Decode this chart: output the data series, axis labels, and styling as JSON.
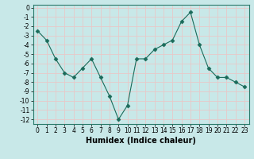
{
  "title": "",
  "xlabel": "Humidex (Indice chaleur)",
  "ylabel": "",
  "x": [
    0,
    1,
    2,
    3,
    4,
    5,
    6,
    7,
    8,
    9,
    10,
    11,
    12,
    13,
    14,
    15,
    16,
    17,
    18,
    19,
    20,
    21,
    22,
    23
  ],
  "y": [
    -2.5,
    -3.5,
    -5.5,
    -7.0,
    -7.5,
    -6.5,
    -5.5,
    -7.5,
    -9.5,
    -12.0,
    -10.5,
    -5.5,
    -5.5,
    -4.5,
    -4.0,
    -3.5,
    -1.5,
    -0.5,
    -4.0,
    -6.5,
    -7.5,
    -7.5,
    -8.0,
    -8.5
  ],
  "line_color": "#1a6b5a",
  "marker": "D",
  "marker_size": 2.5,
  "background_color": "#c8e8e8",
  "grid_color": "#e8c8c8",
  "ylim": [
    -12.5,
    0.3
  ],
  "xlim": [
    -0.5,
    23.5
  ],
  "yticks": [
    0,
    -1,
    -2,
    -3,
    -4,
    -5,
    -6,
    -7,
    -8,
    -9,
    -10,
    -11,
    -12
  ],
  "xticks": [
    0,
    1,
    2,
    3,
    4,
    5,
    6,
    7,
    8,
    9,
    10,
    11,
    12,
    13,
    14,
    15,
    16,
    17,
    18,
    19,
    20,
    21,
    22,
    23
  ],
  "tick_fontsize": 5.5,
  "xlabel_fontsize": 7,
  "spine_color": "#2a7a6a"
}
